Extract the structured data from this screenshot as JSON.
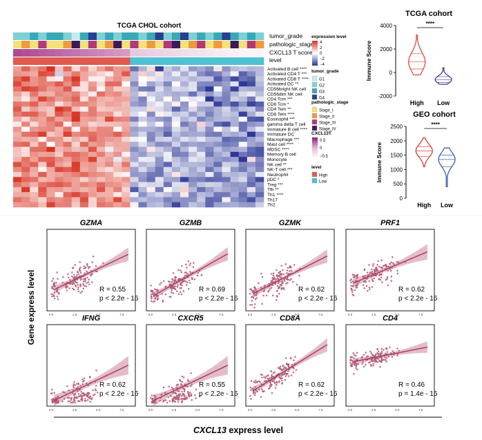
{
  "colors": {
    "high": "#e05a4f",
    "low": "#4ec1d3",
    "violin_tcga_high": "#e04a3f",
    "violin_tcga_low": "#3d3d9a",
    "violin_geo_high": "#d93a35",
    "violin_geo_low": "#3b5fa8",
    "scatter_point": "#b45a76",
    "scatter_line": "#a3415e",
    "scatter_band": "#d9a0b2",
    "heat_high": "#d7301f",
    "heat_mid": "#ffffff",
    "heat_low": "#2c3796"
  },
  "heatmap": {
    "title": "TCGA CHOL cohort",
    "annotation_rows": [
      "tumor_grade",
      "pathologic_stage",
      "CXCL13 T score",
      "level"
    ],
    "cell_types": [
      "Activated B cell ****",
      "Activated CD4 T ***",
      "Activated CD8 T ****",
      "Activated DC **",
      "CD56bright NK cell",
      "CD56dim NK cell",
      "CD4 Tcm ***",
      "CD8 Tcm *",
      "CD4 Tem **",
      "CD8 Tem ****",
      "Eosinophil ***",
      "gamma delta T cell",
      "Immature B cell ****",
      "Immature DC",
      "Macrophage ***",
      "Mast cell ****",
      "MDSC ****",
      "Memory B cell",
      "Monocyte",
      "NK cell **",
      "NK-T cell ***",
      "Neutrophil",
      "pDC *",
      "Treg ***",
      "Tfh **",
      "Th1 ****",
      "Th17",
      "Th2"
    ],
    "legend": {
      "expression_title": "expression level",
      "expression_ticks": [
        "4",
        "2",
        "0",
        "−2",
        "−4"
      ],
      "grade_title": "tumor_grade",
      "grade_items": [
        {
          "label": "G1",
          "color": "#c6ecee"
        },
        {
          "label": "G2",
          "color": "#7fd0d4"
        },
        {
          "label": "G3",
          "color": "#3aa8b6"
        },
        {
          "label": "G4",
          "color": "#2b3e8f"
        }
      ],
      "stage_title": "pathologic_stage",
      "stage_items": [
        {
          "label": "Stage_I",
          "color": "#f3e27a"
        },
        {
          "label": "Stage_II",
          "color": "#ef9a3c"
        },
        {
          "label": "Stage_III",
          "color": "#b03a7a"
        },
        {
          "label": "Stage_IV",
          "color": "#3a1a5e"
        }
      ],
      "score_title": "CXCL13T",
      "score_ticks": [
        "0.5",
        "0",
        "−0.5"
      ],
      "level_title": "level",
      "level_items": [
        {
          "label": "High",
          "color": "#e05a4f"
        },
        {
          "label": "Low",
          "color": "#4ec1d3"
        }
      ]
    }
  },
  "chart_data": [
    {
      "type": "violin",
      "title": "TCGA cohort",
      "ylabel": "Immune Score",
      "categories": [
        "High",
        "Low"
      ],
      "yticks": [
        4000,
        2000,
        0,
        -2000
      ],
      "ylim": [
        -2000,
        4000
      ],
      "significance": "****",
      "series": [
        {
          "name": "High",
          "min": -200,
          "max": 3200,
          "median": 900,
          "q1": 300,
          "q3": 1600
        },
        {
          "name": "Low",
          "min": -1000,
          "max": 400,
          "median": -600,
          "q1": -850,
          "q3": -350
        }
      ]
    },
    {
      "type": "violin",
      "title": "GEO  cohort",
      "ylabel": "Immune Score",
      "categories": [
        "High",
        "Low"
      ],
      "yticks": [
        2500,
        2000,
        1500,
        1000,
        500,
        0
      ],
      "ylim": [
        0,
        2500
      ],
      "significance": "****",
      "series": [
        {
          "name": "High",
          "min": 1100,
          "max": 2100,
          "median": 1650,
          "q1": 1450,
          "q3": 1800
        },
        {
          "name": "Low",
          "min": 400,
          "max": 1750,
          "median": 1350,
          "q1": 1100,
          "q3": 1500
        }
      ]
    },
    {
      "type": "scatter",
      "xlabel": "CXCL13 express level",
      "ylabel": "Gene express level",
      "panels": [
        {
          "gene": "GZMA",
          "R": "R = 0.55",
          "p": "p < 2.2e - 16",
          "slope": 0.42,
          "intercept": 1.6,
          "spread": 1.1,
          "xticks": [
            "0.0",
            "2.5",
            "5.0",
            "7.5"
          ],
          "xmax": 8.5,
          "ymax": 7
        },
        {
          "gene": "GZMB",
          "R": "R = 0.69",
          "p": "p < 2.2e - 16",
          "slope": 0.5,
          "intercept": 1.0,
          "spread": 0.9,
          "xticks": [
            "0.0",
            "2.5",
            "5.0",
            "7.5"
          ],
          "xmax": 8.5,
          "ymax": 7
        },
        {
          "gene": "GZMK",
          "R": "R = 0.62",
          "p": "p < 2.2e - 16",
          "slope": 0.45,
          "intercept": 1.2,
          "spread": 1.0,
          "xticks": [
            "0.0",
            "2.5",
            "5.0",
            "7.5"
          ],
          "xmax": 8.5,
          "ymax": 7
        },
        {
          "gene": "PRF1",
          "R": "R = 0.62",
          "p": "p < 2.2e - 16",
          "slope": 0.32,
          "intercept": 1.9,
          "spread": 0.8,
          "xticks": [
            "0.0",
            "2.5",
            "5.0",
            "7.5"
          ],
          "xmax": 8.5,
          "ymax": 6
        },
        {
          "gene": "IFNG",
          "R": "R = 0.62",
          "p": "p < 2.2e - 16",
          "slope": 0.3,
          "intercept": 0.1,
          "spread": 0.7,
          "xticks": [
            "0.0",
            "2.5",
            "5.0",
            "7.5"
          ],
          "xmax": 8.5,
          "ymax": 5
        },
        {
          "gene": "CXCR5",
          "R": "R = 0.55",
          "p": "p < 2.2e - 16",
          "slope": 0.3,
          "intercept": 0.1,
          "spread": 0.7,
          "xticks": [
            "0.0",
            "2.5",
            "5.0",
            "7.5"
          ],
          "xmax": 8.5,
          "ymax": 5
        },
        {
          "gene": "CD8A",
          "R": "R = 0.62",
          "p": "p < 2.2e - 16",
          "slope": 0.55,
          "intercept": 1.0,
          "spread": 0.9,
          "xticks": [
            "0.0",
            "2.5",
            "5.0",
            "7.5"
          ],
          "xmax": 8.5,
          "ymax": 7
        },
        {
          "gene": "CD4",
          "R": "R = 0.46",
          "p": "p = 1.4e - 15",
          "slope": 0.2,
          "intercept": 4.4,
          "spread": 0.8,
          "xticks": [
            "0.0",
            "2.5",
            "5.0",
            "7.5"
          ],
          "xmax": 8.5,
          "ymax": 8
        }
      ]
    }
  ]
}
